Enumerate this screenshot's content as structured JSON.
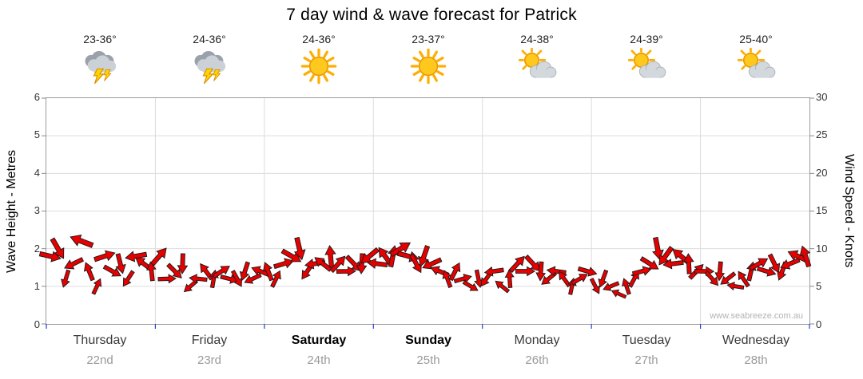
{
  "title": "7 day wind & wave forecast for Patrick",
  "watermark": "www.seabreeze.com.au",
  "axes": {
    "left_label": "Wave Height - Metres",
    "right_label": "Wind Speed - Knots",
    "left_ticks": [
      6,
      5,
      4,
      3,
      2,
      1,
      0
    ],
    "right_ticks": [
      30,
      25,
      20,
      15,
      10,
      5,
      0
    ]
  },
  "days": [
    {
      "name": "Thursday",
      "date": "22nd",
      "temp": "23-36°",
      "icon": "thunderstorm",
      "weekend": false
    },
    {
      "name": "Friday",
      "date": "23rd",
      "temp": "24-36°",
      "icon": "thunderstorm",
      "weekend": false
    },
    {
      "name": "Saturday",
      "date": "24th",
      "temp": "24-36°",
      "icon": "sunny",
      "weekend": true
    },
    {
      "name": "Sunday",
      "date": "25th",
      "temp": "23-37°",
      "icon": "sunny",
      "weekend": true
    },
    {
      "name": "Monday",
      "date": "26th",
      "temp": "24-38°",
      "icon": "partly-cloudy",
      "weekend": false
    },
    {
      "name": "Tuesday",
      "date": "27th",
      "temp": "24-39°",
      "icon": "partly-cloudy",
      "weekend": false
    },
    {
      "name": "Wednesday",
      "date": "28th",
      "temp": "25-40°",
      "icon": "partly-cloudy",
      "weekend": false
    }
  ],
  "chart_data": {
    "type": "wind-arrows",
    "title": "7 day wind & wave forecast for Patrick",
    "x_categories": [
      "Thursday 22nd",
      "Friday 23rd",
      "Saturday 24th",
      "Sunday 25th",
      "Monday 26th",
      "Tuesday 27th",
      "Wednesday 28th"
    ],
    "left_axis": {
      "label": "Wave Height - Metres",
      "min": 0,
      "max": 6
    },
    "right_axis": {
      "label": "Wind Speed - Knots",
      "min": 0,
      "max": 30
    },
    "grid": true,
    "arrow_color": "#e60000",
    "series": {
      "name": "Wind speed (knots) with direction arrows",
      "points_per_day": 14,
      "knots": [
        9,
        10,
        6,
        8,
        11,
        7,
        5,
        9,
        7,
        8,
        6,
        9,
        8,
        7,
        9,
        6,
        7,
        8,
        5,
        6,
        7,
        6,
        7,
        6,
        6,
        7,
        6,
        7,
        7,
        6,
        8,
        9,
        10,
        7,
        8,
        8,
        9,
        8,
        7,
        8,
        8,
        9,
        8,
        9,
        9,
        10,
        9,
        8,
        9,
        8,
        7,
        6,
        7,
        6,
        5,
        6,
        6,
        7,
        5,
        6,
        8,
        7,
        8,
        7,
        6,
        7,
        6,
        5,
        6,
        7,
        5,
        6,
        5,
        4,
        5,
        6,
        7,
        8,
        10,
        9,
        8,
        9,
        8,
        7,
        7,
        6,
        7,
        6,
        5,
        6,
        7,
        8,
        7,
        8,
        7,
        8,
        9,
        9
      ],
      "dir_deg": [
        13,
        60,
        107,
        154,
        201,
        248,
        295,
        342,
        29,
        76,
        123,
        170,
        217,
        264,
        311,
        358,
        45,
        92,
        139,
        186,
        233,
        280,
        327,
        14,
        61,
        108,
        155,
        202,
        249,
        296,
        343,
        30,
        77,
        124,
        171,
        218,
        265,
        312,
        359,
        46,
        93,
        140,
        187,
        234,
        281,
        328,
        15,
        62,
        109,
        156,
        203,
        250,
        297,
        344,
        31,
        78,
        125,
        172,
        219,
        266,
        313,
        0,
        47,
        94,
        141,
        188,
        235,
        282,
        329,
        16,
        63,
        110,
        157,
        204,
        251,
        298,
        345,
        32,
        79,
        126,
        173,
        220,
        267,
        314,
        1,
        48,
        95,
        142,
        189,
        236,
        283,
        330,
        17,
        64,
        111,
        158,
        205,
        252
      ]
    }
  }
}
